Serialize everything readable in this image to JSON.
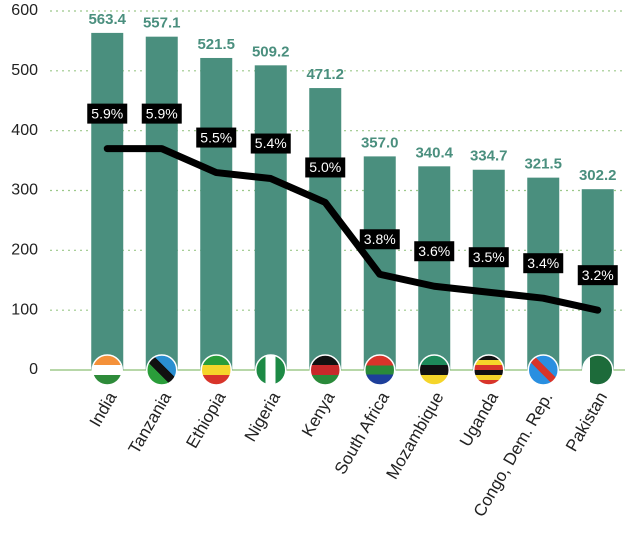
{
  "chart_data": {
    "type": "bar",
    "categories": [
      "India",
      "Tanzania",
      "Ethiopia",
      "Nigeria",
      "Kenya",
      "South Africa",
      "Mozambique",
      "Uganda",
      "Congo, Dem. Rep.",
      "Pakistan"
    ],
    "series": [
      {
        "type": "bar",
        "color": "#4a8f7e",
        "values": [
          563.4,
          557.1,
          521.5,
          509.2,
          471.2,
          357.0,
          340.4,
          334.7,
          321.5,
          302.2
        ],
        "value_labels": [
          "563.4",
          "557.1",
          "521.5",
          "509.2",
          "471.2",
          "357.0",
          "340.4",
          "334.7",
          "321.5",
          "302.2"
        ]
      },
      {
        "type": "line",
        "axis": "y2",
        "color": "#000000",
        "values": [
          5.9,
          5.9,
          5.5,
          5.4,
          5.0,
          3.8,
          3.6,
          3.5,
          3.4,
          3.2
        ],
        "value_labels": [
          "5.9%",
          "5.9%",
          "5.5%",
          "5.4%",
          "5.0%",
          "3.8%",
          "3.6%",
          "3.5%",
          "3.4%",
          "3.2%"
        ]
      }
    ],
    "ylim": [
      0,
      600
    ],
    "yticks": [
      0,
      100,
      200,
      300,
      400,
      500,
      600
    ],
    "y2lim": [
      2.2,
      8.2
    ],
    "grid": true
  }
}
